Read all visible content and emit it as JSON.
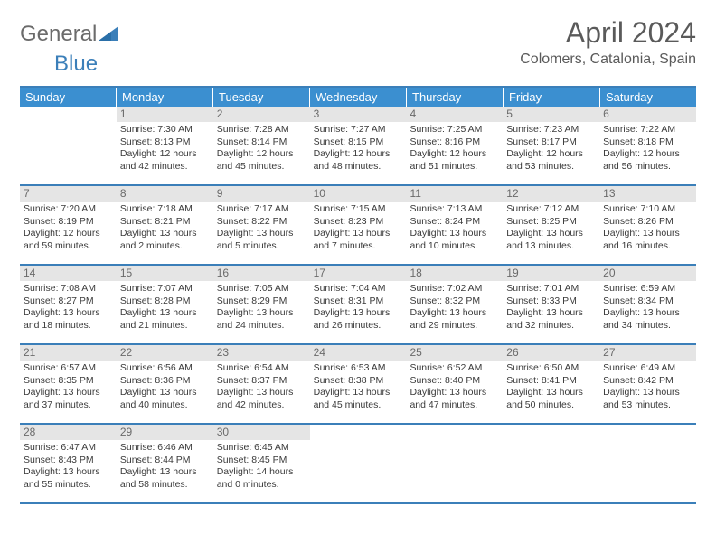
{
  "branding": {
    "logo_text_1": "General",
    "logo_text_2": "Blue",
    "logo_color_1": "#6b6b6b",
    "logo_color_2": "#3b7fb9"
  },
  "header": {
    "title": "April 2024",
    "location": "Colomers, Catalonia, Spain"
  },
  "style": {
    "header_bg": "#3b8fd0",
    "header_text": "#ffffff",
    "daynum_bg": "#e5e5e5",
    "border_color": "#3b7fb9",
    "body_text": "#3a3a3a",
    "cell_fontsize": 10.5,
    "title_fontsize": 32,
    "location_fontsize": 16
  },
  "day_headers": [
    "Sunday",
    "Monday",
    "Tuesday",
    "Wednesday",
    "Thursday",
    "Friday",
    "Saturday"
  ],
  "weeks": [
    [
      {
        "n": "",
        "sr": "",
        "ss": "",
        "dl1": "",
        "dl2": ""
      },
      {
        "n": "1",
        "sr": "Sunrise: 7:30 AM",
        "ss": "Sunset: 8:13 PM",
        "dl1": "Daylight: 12 hours",
        "dl2": "and 42 minutes."
      },
      {
        "n": "2",
        "sr": "Sunrise: 7:28 AM",
        "ss": "Sunset: 8:14 PM",
        "dl1": "Daylight: 12 hours",
        "dl2": "and 45 minutes."
      },
      {
        "n": "3",
        "sr": "Sunrise: 7:27 AM",
        "ss": "Sunset: 8:15 PM",
        "dl1": "Daylight: 12 hours",
        "dl2": "and 48 minutes."
      },
      {
        "n": "4",
        "sr": "Sunrise: 7:25 AM",
        "ss": "Sunset: 8:16 PM",
        "dl1": "Daylight: 12 hours",
        "dl2": "and 51 minutes."
      },
      {
        "n": "5",
        "sr": "Sunrise: 7:23 AM",
        "ss": "Sunset: 8:17 PM",
        "dl1": "Daylight: 12 hours",
        "dl2": "and 53 minutes."
      },
      {
        "n": "6",
        "sr": "Sunrise: 7:22 AM",
        "ss": "Sunset: 8:18 PM",
        "dl1": "Daylight: 12 hours",
        "dl2": "and 56 minutes."
      }
    ],
    [
      {
        "n": "7",
        "sr": "Sunrise: 7:20 AM",
        "ss": "Sunset: 8:19 PM",
        "dl1": "Daylight: 12 hours",
        "dl2": "and 59 minutes."
      },
      {
        "n": "8",
        "sr": "Sunrise: 7:18 AM",
        "ss": "Sunset: 8:21 PM",
        "dl1": "Daylight: 13 hours",
        "dl2": "and 2 minutes."
      },
      {
        "n": "9",
        "sr": "Sunrise: 7:17 AM",
        "ss": "Sunset: 8:22 PM",
        "dl1": "Daylight: 13 hours",
        "dl2": "and 5 minutes."
      },
      {
        "n": "10",
        "sr": "Sunrise: 7:15 AM",
        "ss": "Sunset: 8:23 PM",
        "dl1": "Daylight: 13 hours",
        "dl2": "and 7 minutes."
      },
      {
        "n": "11",
        "sr": "Sunrise: 7:13 AM",
        "ss": "Sunset: 8:24 PM",
        "dl1": "Daylight: 13 hours",
        "dl2": "and 10 minutes."
      },
      {
        "n": "12",
        "sr": "Sunrise: 7:12 AM",
        "ss": "Sunset: 8:25 PM",
        "dl1": "Daylight: 13 hours",
        "dl2": "and 13 minutes."
      },
      {
        "n": "13",
        "sr": "Sunrise: 7:10 AM",
        "ss": "Sunset: 8:26 PM",
        "dl1": "Daylight: 13 hours",
        "dl2": "and 16 minutes."
      }
    ],
    [
      {
        "n": "14",
        "sr": "Sunrise: 7:08 AM",
        "ss": "Sunset: 8:27 PM",
        "dl1": "Daylight: 13 hours",
        "dl2": "and 18 minutes."
      },
      {
        "n": "15",
        "sr": "Sunrise: 7:07 AM",
        "ss": "Sunset: 8:28 PM",
        "dl1": "Daylight: 13 hours",
        "dl2": "and 21 minutes."
      },
      {
        "n": "16",
        "sr": "Sunrise: 7:05 AM",
        "ss": "Sunset: 8:29 PM",
        "dl1": "Daylight: 13 hours",
        "dl2": "and 24 minutes."
      },
      {
        "n": "17",
        "sr": "Sunrise: 7:04 AM",
        "ss": "Sunset: 8:31 PM",
        "dl1": "Daylight: 13 hours",
        "dl2": "and 26 minutes."
      },
      {
        "n": "18",
        "sr": "Sunrise: 7:02 AM",
        "ss": "Sunset: 8:32 PM",
        "dl1": "Daylight: 13 hours",
        "dl2": "and 29 minutes."
      },
      {
        "n": "19",
        "sr": "Sunrise: 7:01 AM",
        "ss": "Sunset: 8:33 PM",
        "dl1": "Daylight: 13 hours",
        "dl2": "and 32 minutes."
      },
      {
        "n": "20",
        "sr": "Sunrise: 6:59 AM",
        "ss": "Sunset: 8:34 PM",
        "dl1": "Daylight: 13 hours",
        "dl2": "and 34 minutes."
      }
    ],
    [
      {
        "n": "21",
        "sr": "Sunrise: 6:57 AM",
        "ss": "Sunset: 8:35 PM",
        "dl1": "Daylight: 13 hours",
        "dl2": "and 37 minutes."
      },
      {
        "n": "22",
        "sr": "Sunrise: 6:56 AM",
        "ss": "Sunset: 8:36 PM",
        "dl1": "Daylight: 13 hours",
        "dl2": "and 40 minutes."
      },
      {
        "n": "23",
        "sr": "Sunrise: 6:54 AM",
        "ss": "Sunset: 8:37 PM",
        "dl1": "Daylight: 13 hours",
        "dl2": "and 42 minutes."
      },
      {
        "n": "24",
        "sr": "Sunrise: 6:53 AM",
        "ss": "Sunset: 8:38 PM",
        "dl1": "Daylight: 13 hours",
        "dl2": "and 45 minutes."
      },
      {
        "n": "25",
        "sr": "Sunrise: 6:52 AM",
        "ss": "Sunset: 8:40 PM",
        "dl1": "Daylight: 13 hours",
        "dl2": "and 47 minutes."
      },
      {
        "n": "26",
        "sr": "Sunrise: 6:50 AM",
        "ss": "Sunset: 8:41 PM",
        "dl1": "Daylight: 13 hours",
        "dl2": "and 50 minutes."
      },
      {
        "n": "27",
        "sr": "Sunrise: 6:49 AM",
        "ss": "Sunset: 8:42 PM",
        "dl1": "Daylight: 13 hours",
        "dl2": "and 53 minutes."
      }
    ],
    [
      {
        "n": "28",
        "sr": "Sunrise: 6:47 AM",
        "ss": "Sunset: 8:43 PM",
        "dl1": "Daylight: 13 hours",
        "dl2": "and 55 minutes."
      },
      {
        "n": "29",
        "sr": "Sunrise: 6:46 AM",
        "ss": "Sunset: 8:44 PM",
        "dl1": "Daylight: 13 hours",
        "dl2": "and 58 minutes."
      },
      {
        "n": "30",
        "sr": "Sunrise: 6:45 AM",
        "ss": "Sunset: 8:45 PM",
        "dl1": "Daylight: 14 hours",
        "dl2": "and 0 minutes."
      },
      {
        "n": "",
        "sr": "",
        "ss": "",
        "dl1": "",
        "dl2": ""
      },
      {
        "n": "",
        "sr": "",
        "ss": "",
        "dl1": "",
        "dl2": ""
      },
      {
        "n": "",
        "sr": "",
        "ss": "",
        "dl1": "",
        "dl2": ""
      },
      {
        "n": "",
        "sr": "",
        "ss": "",
        "dl1": "",
        "dl2": ""
      }
    ]
  ]
}
